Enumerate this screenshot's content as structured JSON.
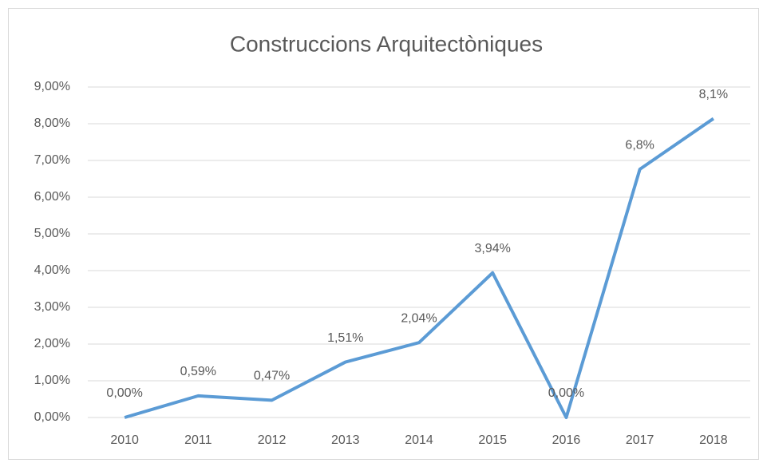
{
  "chart_data": {
    "type": "line",
    "title": "Construccions Arquitectòniques",
    "categories": [
      "2010",
      "2011",
      "2012",
      "2013",
      "2014",
      "2015",
      "2016",
      "2017",
      "2018"
    ],
    "series": [
      {
        "name": "Construccions Arquitectòniques",
        "color": "#5b9bd5",
        "values": [
          0,
          0.59,
          0.47,
          1.51,
          2.04,
          3.94,
          0,
          6.76,
          8.14
        ],
        "value_labels": [
          "0,00%",
          "0,59%",
          "0,47%",
          "1,51%",
          "2,04%",
          "3,94%",
          "0,00%",
          "6,8%",
          "8,1%"
        ]
      }
    ],
    "ylim": [
      0,
      9
    ],
    "yticks": [
      {
        "value": 0,
        "label": "0,00%"
      },
      {
        "value": 1,
        "label": "1,00%"
      },
      {
        "value": 2,
        "label": "2,00%"
      },
      {
        "value": 3,
        "label": "3,00%"
      },
      {
        "value": 4,
        "label": "4,00%"
      },
      {
        "value": 5,
        "label": "5,00%"
      },
      {
        "value": 6,
        "label": "6,00%"
      },
      {
        "value": 7,
        "label": "7,00%"
      },
      {
        "value": 8,
        "label": "8,00%"
      },
      {
        "value": 9,
        "label": "9,00%"
      }
    ],
    "grid": true
  }
}
